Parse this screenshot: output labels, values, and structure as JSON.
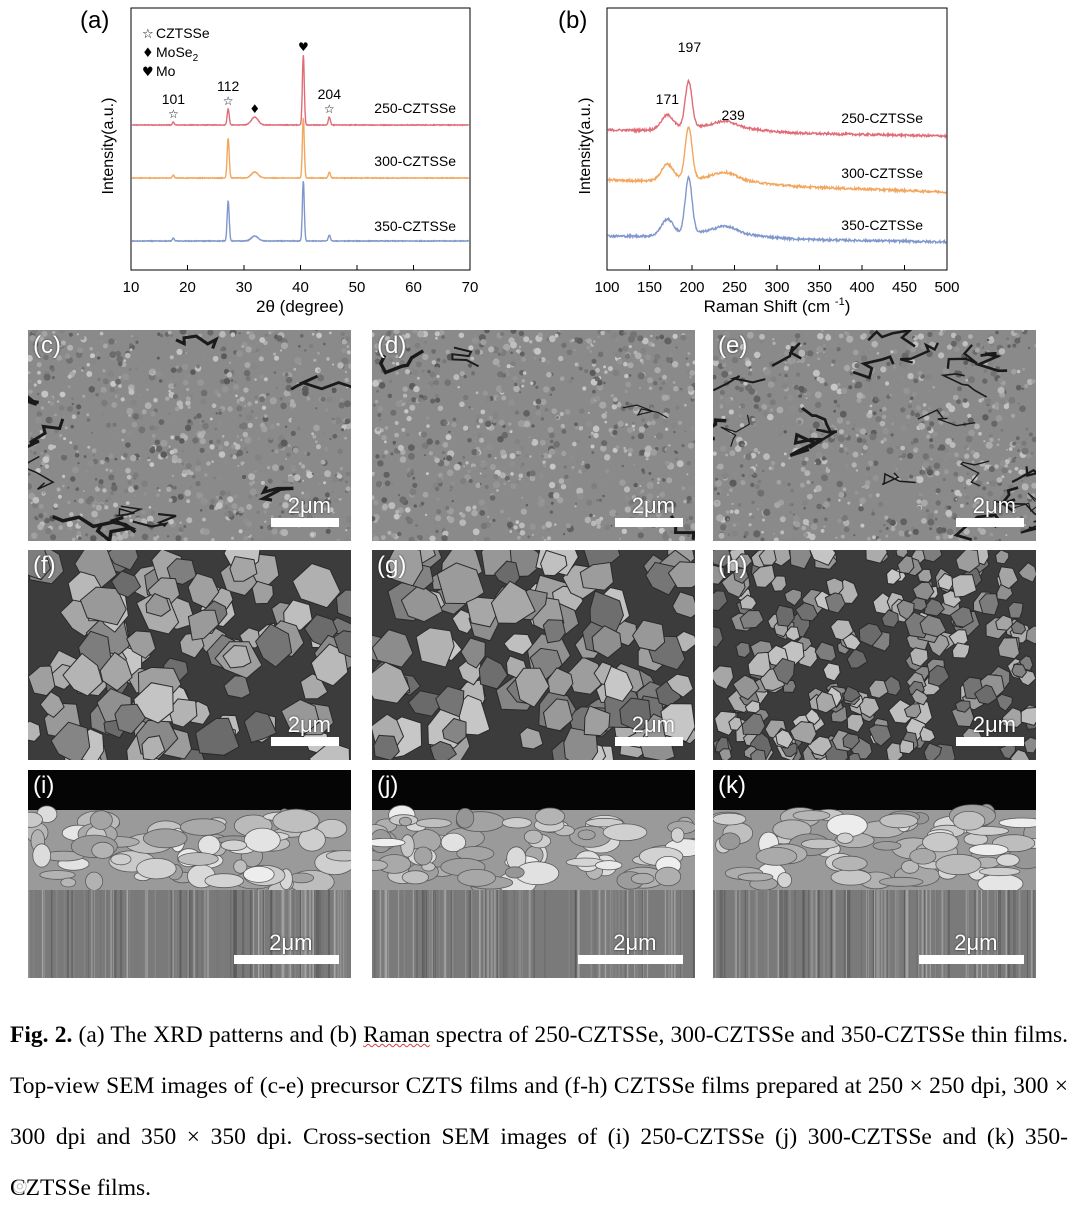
{
  "chart_data": [
    {
      "panel": "(a)",
      "type": "line",
      "xlabel": "2θ (degree)",
      "ylabel": "Intensity(a.u.)",
      "xlim": [
        10,
        70
      ],
      "xticks": [
        "10",
        "20",
        "30",
        "40",
        "50",
        "60",
        "70"
      ],
      "legend": [
        {
          "symbol": "☆",
          "label": "CZTSSe"
        },
        {
          "symbol": "♦",
          "label": "MoSe",
          "sub": "2"
        },
        {
          "symbol": "♥",
          "label": "Mo"
        }
      ],
      "peak_labels": [
        {
          "x": 17.5,
          "text": "101",
          "symbol": "☆"
        },
        {
          "x": 27.2,
          "text": "112",
          "symbol": "☆"
        },
        {
          "x": 31.9,
          "symbol": "♦"
        },
        {
          "x": 40.5,
          "symbol": "♥"
        },
        {
          "x": 45.1,
          "text": "204",
          "symbol": "☆"
        }
      ],
      "peaks": [
        {
          "x": 17.5,
          "w": 0.15,
          "h": [
            0.3,
            0.3,
            0.3
          ]
        },
        {
          "x": 27.2,
          "w": 0.18,
          "h": [
            1.6,
            4.0,
            4.0
          ]
        },
        {
          "x": 31.9,
          "w": 0.6,
          "h": [
            0.8,
            0.6,
            0.5
          ]
        },
        {
          "x": 40.5,
          "w": 0.17,
          "h": [
            7.0,
            6.0,
            6.0
          ]
        },
        {
          "x": 45.1,
          "w": 0.18,
          "h": [
            0.8,
            0.6,
            0.6
          ]
        }
      ],
      "series": [
        {
          "name": "250-CZTSSe",
          "color": "#e06c78"
        },
        {
          "name": "300-CZTSSe",
          "color": "#f2a65e"
        },
        {
          "name": "350-CZTSSe",
          "color": "#8097cc"
        }
      ],
      "grid": false
    },
    {
      "panel": "(b)",
      "type": "line",
      "xlabel": "Raman Shift (cm",
      "xlabel_sup": "-1",
      "xlabel_end": ")",
      "ylabel": "Intensity(a.u.)",
      "xlim": [
        100,
        500
      ],
      "xticks": [
        "100",
        "150",
        "200",
        "250",
        "300",
        "350",
        "400",
        "450",
        "500"
      ],
      "peak_labels": [
        {
          "x": 171,
          "text": "171"
        },
        {
          "x": 197,
          "text": "197"
        },
        {
          "x": 239,
          "text": "239"
        }
      ],
      "series": [
        {
          "name": "250-CZTSSe",
          "color": "#e06c78"
        },
        {
          "name": "300-CZTSSe",
          "color": "#f2a65e"
        },
        {
          "name": "350-CZTSSe",
          "color": "#8097cc"
        }
      ],
      "grid": false
    }
  ],
  "sem_panels": [
    {
      "letter": "(c)",
      "scale": "2μm"
    },
    {
      "letter": "(d)",
      "scale": "2μm"
    },
    {
      "letter": "(e)",
      "scale": "2μm"
    },
    {
      "letter": "(f)",
      "scale": "2μm"
    },
    {
      "letter": "(g)",
      "scale": "2μm"
    },
    {
      "letter": "(h)",
      "scale": "2μm"
    },
    {
      "letter": "(i)",
      "scale": "2μm"
    },
    {
      "letter": "(j)",
      "scale": "2μm"
    },
    {
      "letter": "(k)",
      "scale": "2μm"
    }
  ],
  "caption": {
    "lead": "Fig. 2.",
    "part1": " (a) The XRD patterns and (b) ",
    "underlined": "Raman",
    "part2": " spectra of 250-CZTSSe, 300-CZTSSe and 350-CZTSSe thin films. Top-view SEM images of (c-e) precursor CZTS films and (f-h) CZTSSe films prepared at 250 × 250 dpi, 300 × 300 dpi and 350 × 350 dpi. Cross-section SEM images of (i) 250-CZTSSe (j) 300-CZTSSe and (k) 350-CZTSSe films."
  }
}
